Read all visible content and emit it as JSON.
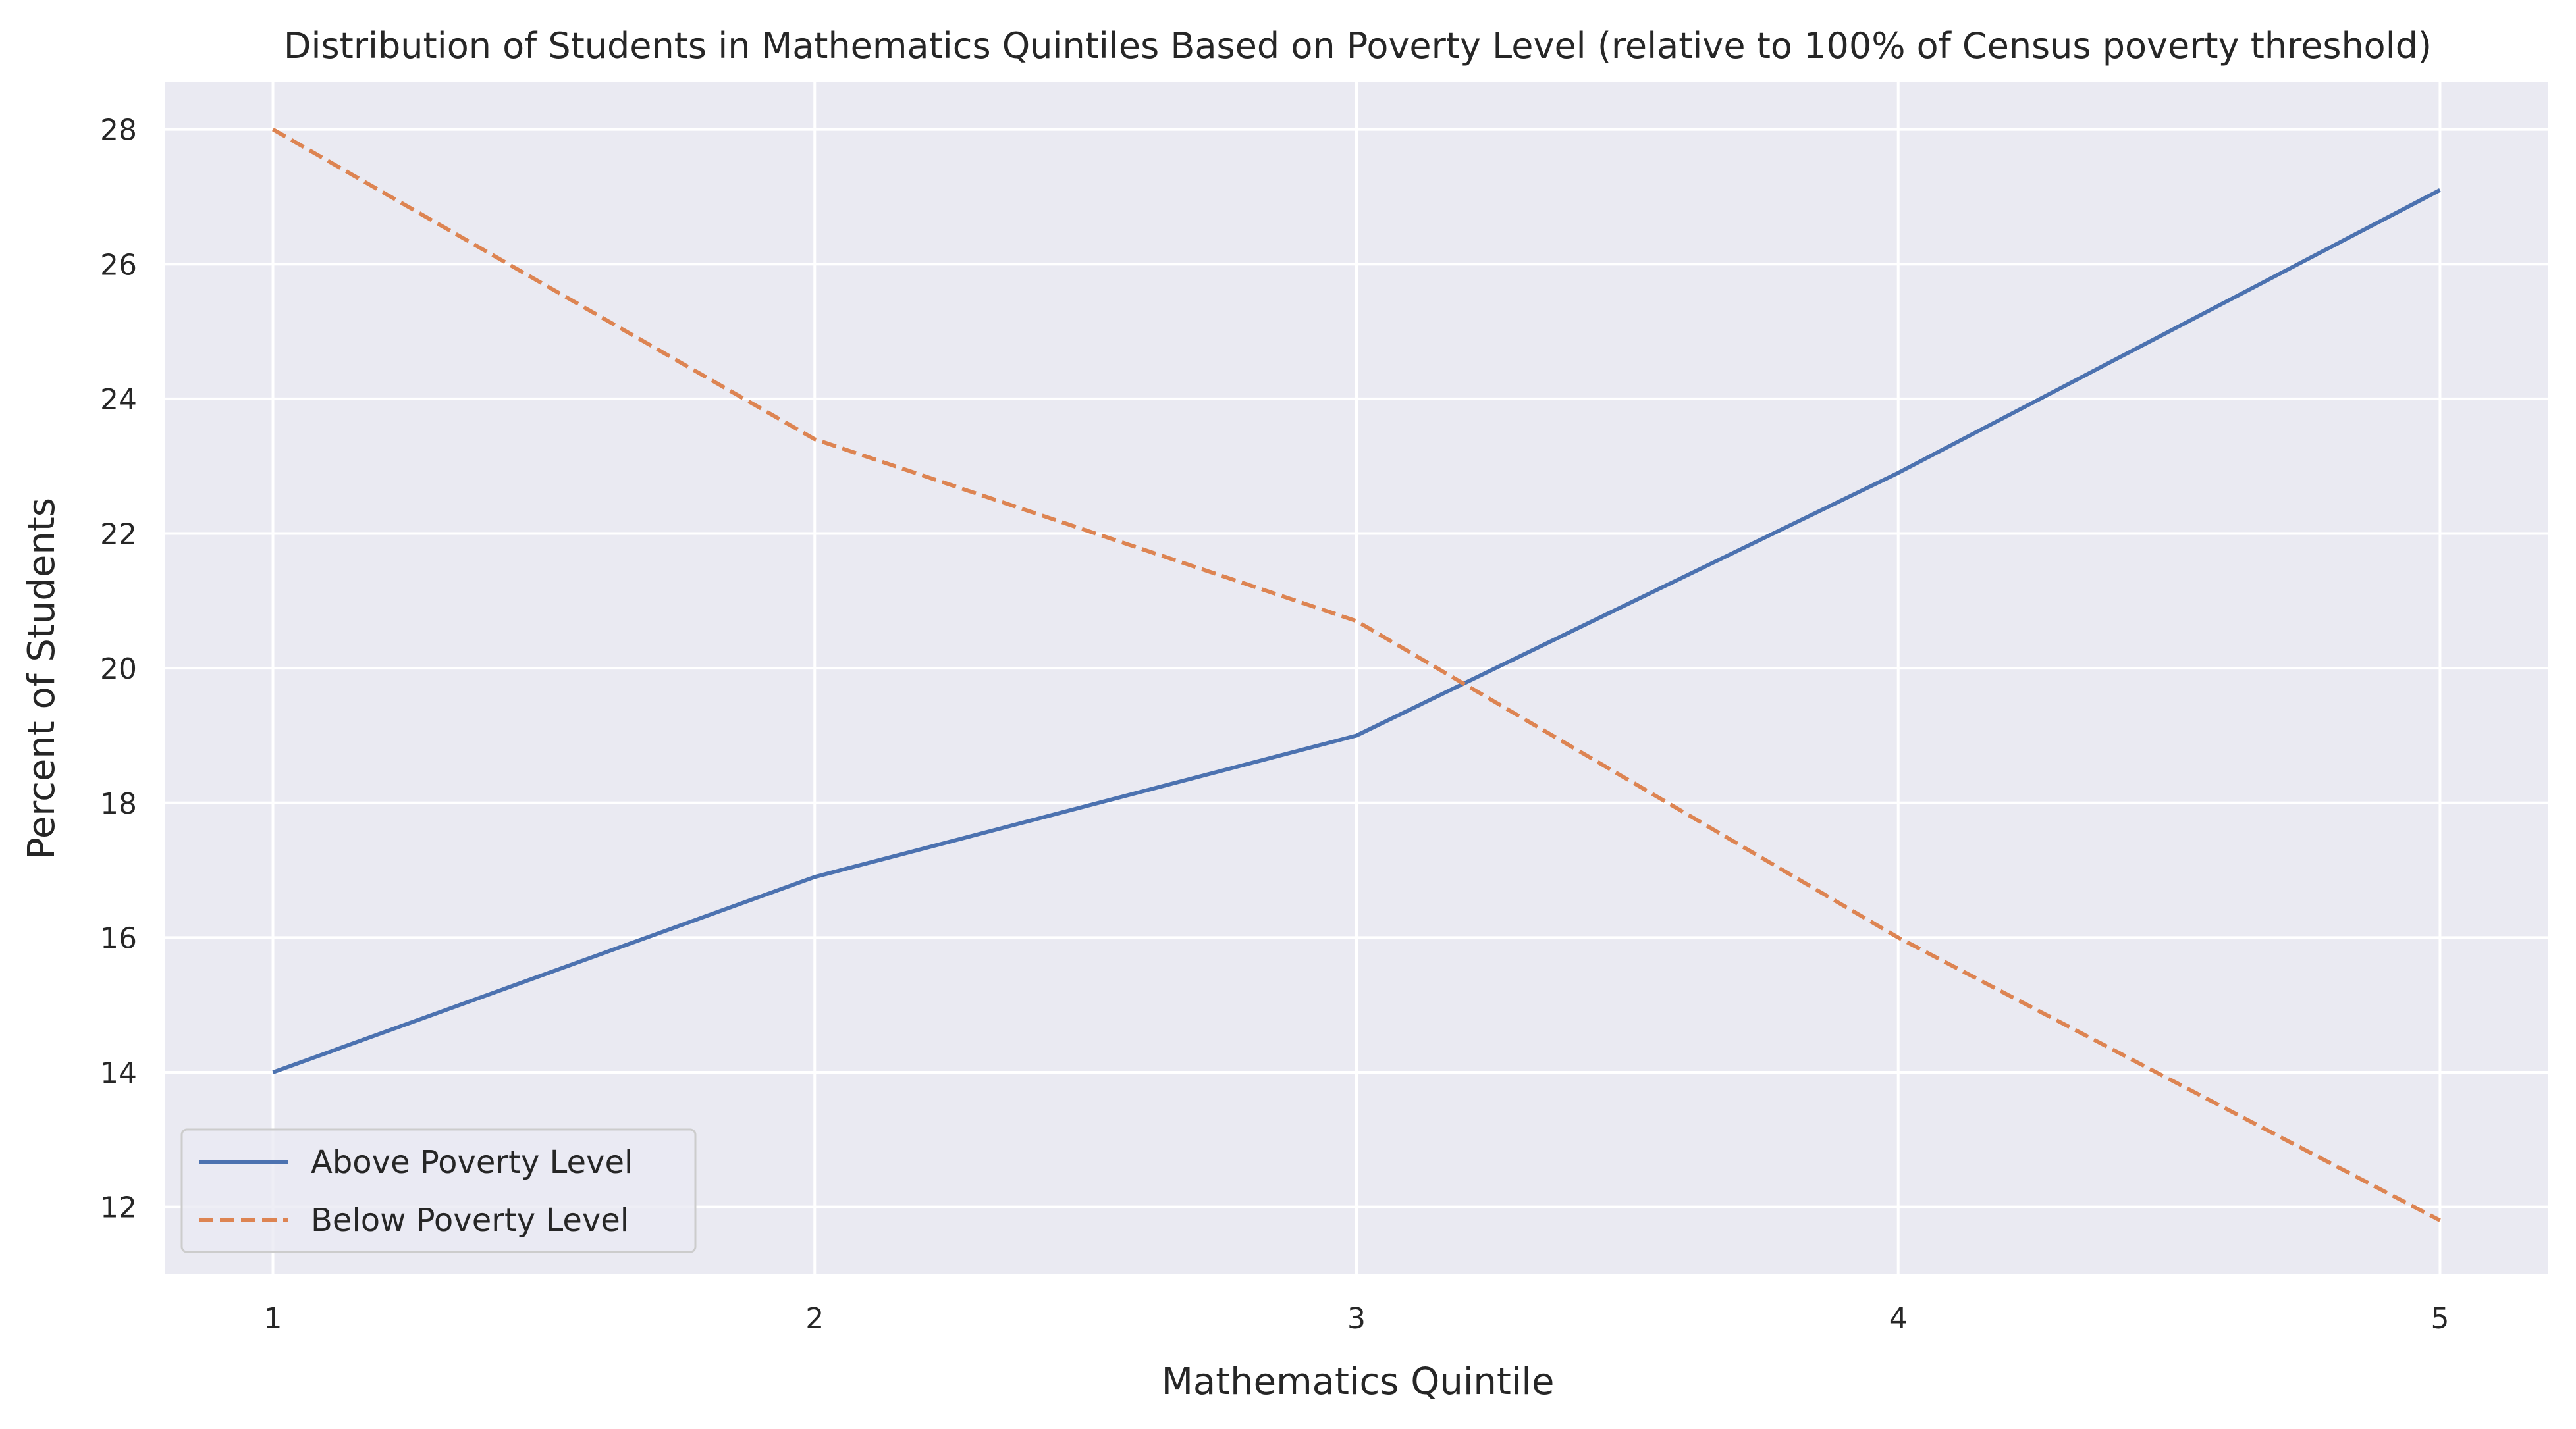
{
  "chart_data": {
    "type": "line",
    "title": "Distribution of Students in Mathematics Quintiles Based on Poverty Level (relative to 100% of Census poverty threshold)",
    "xlabel": "Mathematics Quintile",
    "ylabel": "Percent of Students",
    "x": [
      1,
      2,
      3,
      4,
      5
    ],
    "x_ticks": [
      "1",
      "2",
      "3",
      "4",
      "5"
    ],
    "y_ticks": [
      "12",
      "14",
      "16",
      "18",
      "20",
      "22",
      "24",
      "26",
      "28"
    ],
    "xlim": [
      0.8,
      5.2
    ],
    "ylim": [
      11.0,
      28.7
    ],
    "grid": true,
    "legend_position": "lower-left",
    "background_color": "#eaeaf2",
    "grid_color": "#ffffff",
    "series": [
      {
        "name": "Above Poverty Level",
        "values": [
          14.0,
          16.9,
          19.0,
          22.9,
          27.1
        ],
        "color": "#4c72b0",
        "line_style": "solid"
      },
      {
        "name": "Below Poverty Level",
        "values": [
          28.0,
          23.4,
          20.7,
          16.0,
          11.8
        ],
        "color": "#dd8452",
        "line_style": "dashed"
      }
    ]
  }
}
